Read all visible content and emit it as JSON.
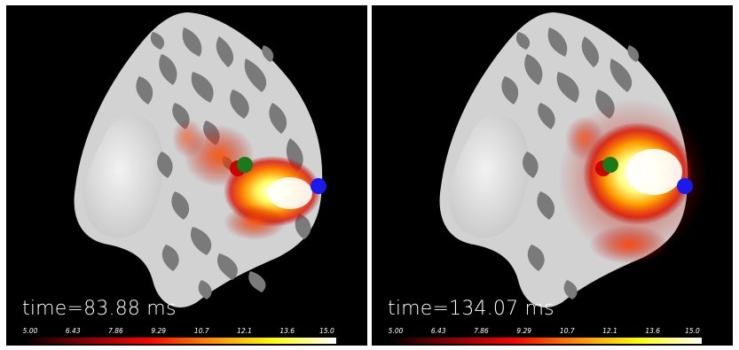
{
  "panels": [
    {
      "time_label": "time=83.88 ms",
      "colorbar_ticks": [
        "5.00",
        "6.43",
        "7.86",
        "9.29",
        "10.7",
        "12.1",
        "13.6",
        "15.0"
      ]
    },
    {
      "time_label": "time=134.07 ms",
      "colorbar_ticks": [
        "5.00",
        "6.43",
        "7.86",
        "9.29",
        "10.7",
        "12.1",
        "13.6",
        "15.0"
      ]
    }
  ],
  "colors": {
    "background": "#000000",
    "cortex_light": "#d4d4d4",
    "cortex_dark": "#7a7a7a",
    "marker_red": "#cc0000",
    "marker_green": "#1a7a1a",
    "marker_blue": "#1a1aee",
    "colormap": [
      "#000000",
      "#8b0000",
      "#ff0000",
      "#ff8c00",
      "#ffff00",
      "#ffffff"
    ]
  }
}
